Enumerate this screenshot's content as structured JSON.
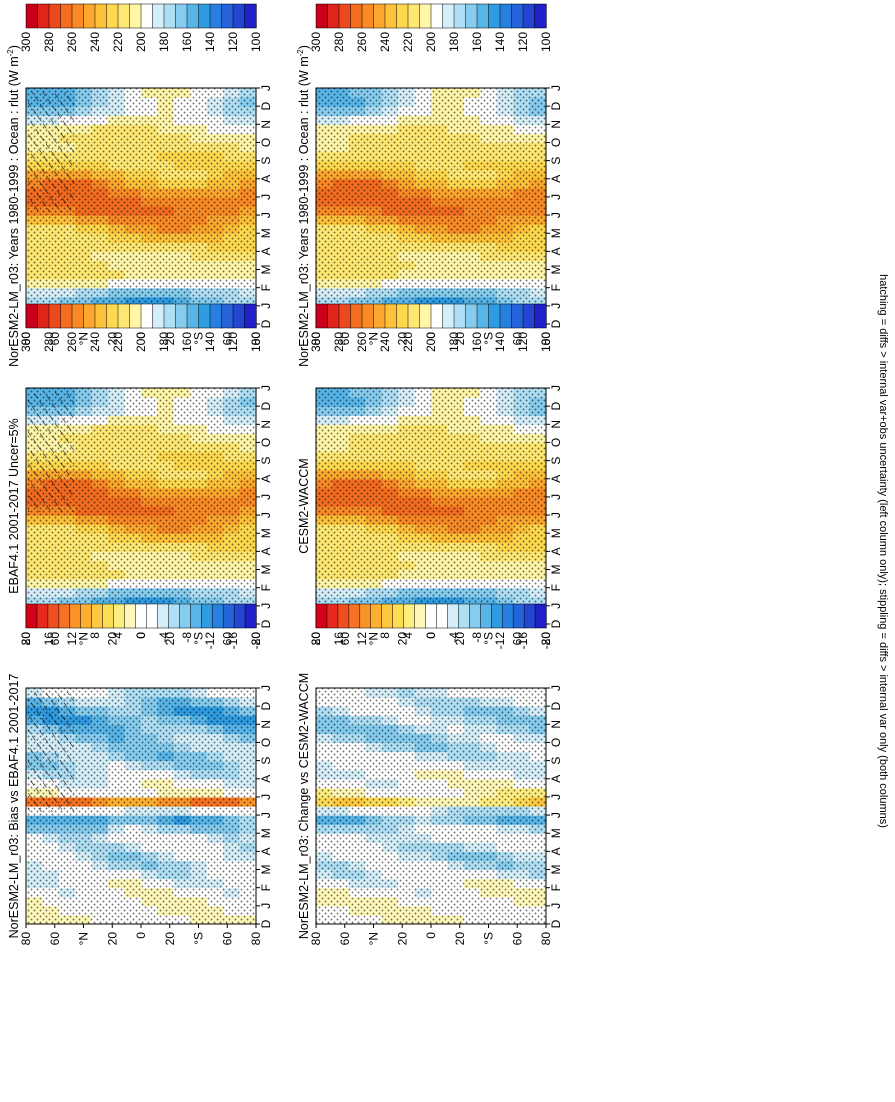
{
  "figure": {
    "footnote": "hatching = diffs > internal var+obs uncertainty (left column only); stippling = diffs > internal var only (both columns)"
  },
  "chart_data": [
    {
      "type": "heatmap",
      "id": "model-left",
      "title": "NorESM2-LM_r03: Years 1980-1999 : Ocean : rlut (W m",
      "title_sup": "-2",
      "title_end": ")",
      "x": [
        "D",
        "J",
        "F",
        "M",
        "A",
        "M",
        "J",
        "J",
        "A",
        "S",
        "O",
        "N",
        "D",
        "J"
      ],
      "y_ticks": [
        "80",
        "60",
        "°N",
        "20",
        "0",
        "20",
        "°S",
        "60",
        "80"
      ],
      "y_range": [
        -90,
        90
      ],
      "colorbar": {
        "ticks": [
          "300",
          "280",
          "260",
          "240",
          "220",
          "200",
          "180",
          "160",
          "140",
          "120",
          "100"
        ]
      },
      "levels": [
        300,
        290,
        280,
        270,
        260,
        250,
        240,
        230,
        220,
        210,
        200,
        190,
        180,
        170,
        160,
        150,
        140,
        130,
        120,
        110,
        100
      ],
      "hatching": true
    },
    {
      "type": "heatmap",
      "id": "model-right",
      "title": "NorESM2-LM_r03: Years 1980-1999 : Ocean : rlut (W m",
      "title_sup": "-2",
      "title_end": ")",
      "x": [
        "D",
        "J",
        "F",
        "M",
        "A",
        "M",
        "J",
        "J",
        "A",
        "S",
        "O",
        "N",
        "D",
        "J"
      ],
      "y_ticks": [
        "80",
        "60",
        "°N",
        "20",
        "0",
        "20",
        "°S",
        "60",
        "80"
      ],
      "y_range": [
        -90,
        90
      ],
      "colorbar": {
        "ticks": [
          "300",
          "280",
          "260",
          "240",
          "220",
          "200",
          "180",
          "160",
          "140",
          "120",
          "100"
        ]
      },
      "levels": [
        300,
        290,
        280,
        270,
        260,
        250,
        240,
        230,
        220,
        210,
        200,
        190,
        180,
        170,
        160,
        150,
        140,
        130,
        120,
        110,
        100
      ],
      "hatching": false
    },
    {
      "type": "heatmap",
      "id": "reference-left",
      "title": "EBAF4.1 2001-2017 Uncer=5%",
      "x": [
        "D",
        "J",
        "F",
        "M",
        "A",
        "M",
        "J",
        "J",
        "A",
        "S",
        "O",
        "N",
        "D",
        "J"
      ],
      "y_ticks": [
        "80",
        "60",
        "°N",
        "20",
        "0",
        "20",
        "°S",
        "60",
        "80"
      ],
      "y_range": [
        -90,
        90
      ],
      "colorbar": {
        "ticks": [
          "300",
          "280",
          "260",
          "240",
          "220",
          "200",
          "180",
          "160",
          "140",
          "120",
          "100"
        ]
      },
      "levels": [
        300,
        290,
        280,
        270,
        260,
        250,
        240,
        230,
        220,
        210,
        200,
        190,
        180,
        170,
        160,
        150,
        140,
        130,
        120,
        110,
        100
      ],
      "hatching": true
    },
    {
      "type": "heatmap",
      "id": "reference-right",
      "title": "CESM2-WACCM",
      "x": [
        "D",
        "J",
        "F",
        "M",
        "A",
        "M",
        "J",
        "J",
        "A",
        "S",
        "O",
        "N",
        "D",
        "J"
      ],
      "y_ticks": [
        "80",
        "60",
        "°N",
        "20",
        "0",
        "20",
        "°S",
        "60",
        "80"
      ],
      "y_range": [
        -90,
        90
      ],
      "colorbar": {
        "ticks": [
          "300",
          "280",
          "260",
          "240",
          "220",
          "200",
          "180",
          "160",
          "140",
          "120",
          "100"
        ]
      },
      "levels": [
        300,
        290,
        280,
        270,
        260,
        250,
        240,
        230,
        220,
        210,
        200,
        190,
        180,
        170,
        160,
        150,
        140,
        130,
        120,
        110,
        100
      ],
      "hatching": false
    },
    {
      "type": "heatmap",
      "id": "difference-left",
      "title": "NorESM2-LM_r03: Bias vs EBAF4.1 2001-2017",
      "x": [
        "D",
        "J",
        "F",
        "M",
        "A",
        "M",
        "J",
        "J",
        "A",
        "S",
        "O",
        "N",
        "D",
        "J"
      ],
      "y_ticks": [
        "80",
        "60",
        "°N",
        "20",
        "0",
        "20",
        "°S",
        "60",
        "80"
      ],
      "y_range": [
        -90,
        90
      ],
      "colorbar": {
        "ticks": [
          "20",
          "16",
          "12",
          "8",
          "4",
          "0",
          "-4",
          "-8",
          "-12",
          "-16",
          "-20"
        ]
      },
      "levels": [
        22,
        20,
        18,
        16,
        14,
        12,
        10,
        8,
        6,
        4,
        2,
        -2,
        -4,
        -6,
        -8,
        -10,
        -12,
        -14,
        -16,
        -18,
        -20,
        -22
      ],
      "hatching": true
    },
    {
      "type": "heatmap",
      "id": "difference-right",
      "title": "NorESM2-LM_r03: Change vs CESM2-WACCM",
      "x": [
        "D",
        "J",
        "F",
        "M",
        "A",
        "M",
        "J",
        "J",
        "A",
        "S",
        "O",
        "N",
        "D",
        "J"
      ],
      "y_ticks": [
        "80",
        "60",
        "°N",
        "20",
        "0",
        "20",
        "°S",
        "60",
        "80"
      ],
      "y_range": [
        -90,
        90
      ],
      "colorbar": {
        "ticks": [
          "20",
          "16",
          "12",
          "8",
          "4",
          "0",
          "-4",
          "-8",
          "-12",
          "-16",
          "-20"
        ]
      },
      "levels": [
        22,
        20,
        18,
        16,
        14,
        12,
        10,
        8,
        6,
        4,
        2,
        -2,
        -4,
        -6,
        -8,
        -10,
        -12,
        -14,
        -16,
        -18,
        -20,
        -22
      ],
      "hatching": false
    }
  ]
}
